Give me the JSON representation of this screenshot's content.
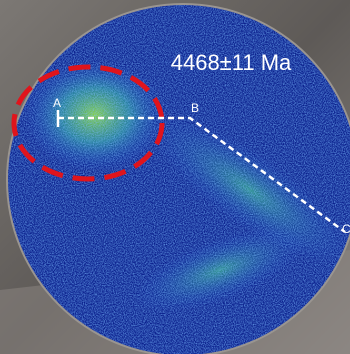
{
  "annotation": "4468±11 Ma",
  "points": [
    {
      "label": "A"
    },
    {
      "label": "B"
    },
    {
      "label": "C"
    }
  ]
}
